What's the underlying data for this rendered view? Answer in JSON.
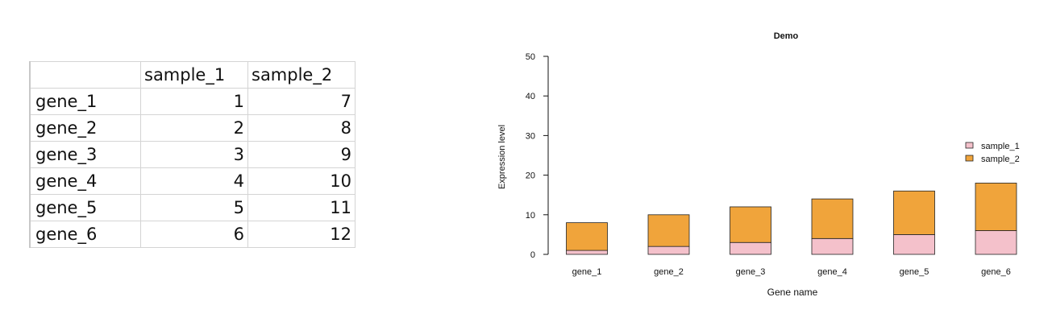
{
  "table": {
    "headers": [
      "",
      "sample_1",
      "sample_2"
    ],
    "rows": [
      [
        "gene_1",
        "1",
        "7"
      ],
      [
        "gene_2",
        "2",
        "8"
      ],
      [
        "gene_3",
        "3",
        "9"
      ],
      [
        "gene_4",
        "4",
        "10"
      ],
      [
        "gene_5",
        "5",
        "11"
      ],
      [
        "gene_6",
        "6",
        "12"
      ]
    ]
  },
  "chart_data": {
    "type": "bar",
    "stacked": true,
    "title": "Demo",
    "xlabel": "Gene name",
    "ylabel": "Expression level",
    "categories": [
      "gene_1",
      "gene_2",
      "gene_3",
      "gene_4",
      "gene_5",
      "gene_6"
    ],
    "series": [
      {
        "name": "sample_1",
        "values": [
          1,
          2,
          3,
          4,
          5,
          6
        ],
        "color": "#f4c1cb"
      },
      {
        "name": "sample_2",
        "values": [
          7,
          8,
          9,
          10,
          11,
          12
        ],
        "color": "#f0a43b"
      }
    ],
    "ylim": [
      0,
      50
    ],
    "yticks": [
      0,
      10,
      20,
      30,
      40,
      50
    ],
    "legend_position": "right",
    "grid": false
  }
}
